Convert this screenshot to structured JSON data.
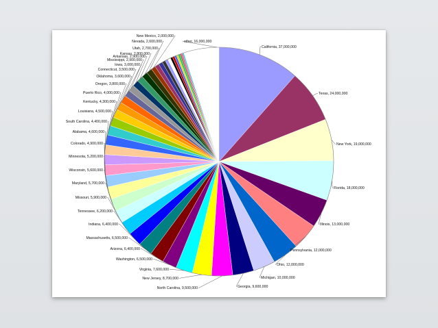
{
  "chart_data": {
    "type": "pie",
    "title": "",
    "legend": "none",
    "slices": [
      {
        "label": "California, 37,000,000",
        "value": 37000000,
        "color": "#9a9aff"
      },
      {
        "label": "Texas, 24,000,000",
        "value": 24000000,
        "color": "#993366"
      },
      {
        "label": "New York, 19,000,000",
        "value": 19000000,
        "color": "#ffffcc"
      },
      {
        "label": "Florida, 18,000,000",
        "value": 18000000,
        "color": "#ccffff"
      },
      {
        "label": "Illinois, 13,000,000",
        "value": 13000000,
        "color": "#660066"
      },
      {
        "label": "Pennsylvania, 12,000,000",
        "value": 12000000,
        "color": "#ff8080"
      },
      {
        "label": "Ohio, 12,000,000",
        "value": 12000000,
        "color": "#0066cc"
      },
      {
        "label": "Michigan, 10,000,000",
        "value": 10000000,
        "color": "#ccccff"
      },
      {
        "label": "Georgia, 9,600,000",
        "value": 9600000,
        "color": "#000080"
      },
      {
        "label": "North Carolina, 9,500,000",
        "value": 9500000,
        "color": "#ff00ff"
      },
      {
        "label": "New Jersey, 8,700,000",
        "value": 8700000,
        "color": "#ffff00"
      },
      {
        "label": "Virginia, 7,600,000",
        "value": 7600000,
        "color": "#00ffff"
      },
      {
        "label": "Washington, 6,500,000",
        "value": 6500000,
        "color": "#800080"
      },
      {
        "label": "Arizona, 6,400,000",
        "value": 6400000,
        "color": "#800000"
      },
      {
        "label": "Massachusetts, 6,500,000",
        "value": 6500000,
        "color": "#008080"
      },
      {
        "label": "Indiana, 6,400,000",
        "value": 6400000,
        "color": "#0000ff"
      },
      {
        "label": "Tennessee, 6,200,000",
        "value": 6200000,
        "color": "#00ccff"
      },
      {
        "label": "Missouri, 5,900,000",
        "value": 5900000,
        "color": "#ccffff"
      },
      {
        "label": "Maryland, 5,700,000",
        "value": 5700000,
        "color": "#ccffcc"
      },
      {
        "label": "Wisconsin, 5,600,000",
        "value": 5600000,
        "color": "#ffff99"
      },
      {
        "label": "Minnesota, 5,200,000",
        "value": 5200000,
        "color": "#99ccff"
      },
      {
        "label": "Colorado, 4,900,000",
        "value": 4900000,
        "color": "#ff99cc"
      },
      {
        "label": "Alabama, 4,600,000",
        "value": 4600000,
        "color": "#cc99ff"
      },
      {
        "label": "South Carolina, 4,400,000",
        "value": 4400000,
        "color": "#ffcc99"
      },
      {
        "label": "Louisiana, 4,500,000",
        "value": 4500000,
        "color": "#3366ff"
      },
      {
        "label": "Kentucky, 4,300,000",
        "value": 4300000,
        "color": "#33cccc"
      },
      {
        "label": "Puerto Rico, 4,000,000",
        "value": 4000000,
        "color": "#99cc00"
      },
      {
        "label": "Oregon, 3,800,000",
        "value": 3800000,
        "color": "#ffcc00"
      },
      {
        "label": "Oklahoma, 3,600,000",
        "value": 3600000,
        "color": "#ff9900"
      },
      {
        "label": "Connecticut, 3,500,000",
        "value": 3500000,
        "color": "#ff6600"
      },
      {
        "label": "Iowa, 3,000,000",
        "value": 3000000,
        "color": "#666699"
      },
      {
        "label": "Mississippi, 2,900,000",
        "value": 2900000,
        "color": "#969696"
      },
      {
        "label": "Arkansas, 2,900,000",
        "value": 2900000,
        "color": "#003366"
      },
      {
        "label": "Kansas, 2,800,000",
        "value": 2800000,
        "color": "#339966"
      },
      {
        "label": "Utah, 2,700,000",
        "value": 2700000,
        "color": "#003300"
      },
      {
        "label": "Nevada, 2,600,000",
        "value": 2600000,
        "color": "#333300"
      },
      {
        "label": "New Mexico, 2,000,000",
        "value": 2000000,
        "color": "#993300"
      },
      {
        "label": "",
        "value": 1900000,
        "color": "#993366"
      },
      {
        "label": "",
        "value": 1800000,
        "color": "#333399"
      },
      {
        "label": "",
        "value": 1500000,
        "color": "#333333"
      },
      {
        "label": "",
        "value": 1300000,
        "color": "#9999ff"
      },
      {
        "label": "",
        "value": 1300000,
        "color": "#ffffff"
      },
      {
        "label": "",
        "value": 1000000,
        "color": "#000000"
      },
      {
        "label": "",
        "value": 1000000,
        "color": "#cc0000"
      },
      {
        "label": "",
        "value": 900000,
        "color": "#3366ff"
      },
      {
        "label": "",
        "value": 800000,
        "color": "#ffcc00"
      },
      {
        "label": "",
        "value": 800000,
        "color": "#00cc66"
      },
      {
        "label": "",
        "value": 700000,
        "color": "#996633"
      },
      {
        "label": "",
        "value": 600000,
        "color": "#ff3399"
      },
      {
        "label": "",
        "value": 600000,
        "color": "#33cccc"
      },
      {
        "label": "other, 16,000,000",
        "value": 16000000,
        "color": "#9a9aff",
        "hidden": true
      }
    ]
  }
}
